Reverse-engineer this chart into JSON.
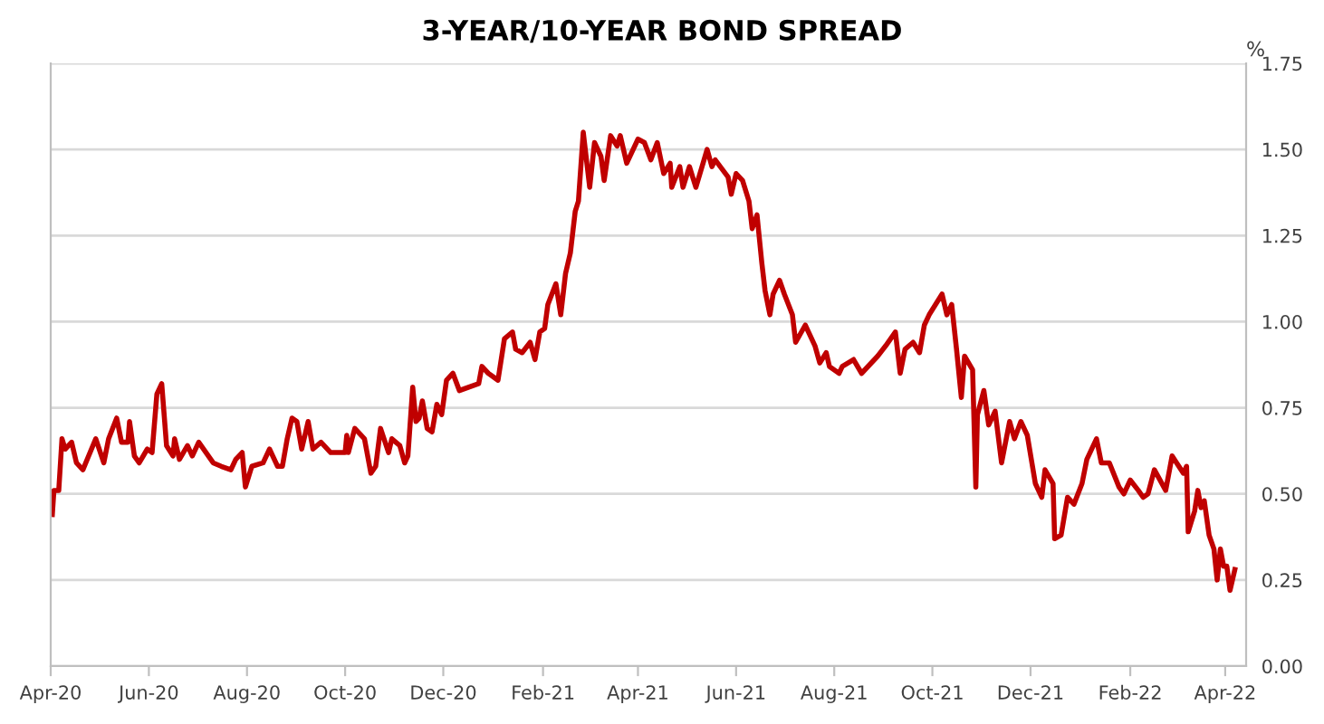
{
  "chart_data": {
    "type": "line",
    "title": "3-YEAR/10-YEAR BOND SPREAD",
    "ylabel": "%",
    "xlim": [
      "2020-04-01",
      "2022-04-14"
    ],
    "xticks": [
      {
        "value": "2020-04-01",
        "label": "Apr-20"
      },
      {
        "value": "2020-06-01",
        "label": "Jun-20"
      },
      {
        "value": "2020-08-01",
        "label": "Aug-20"
      },
      {
        "value": "2020-10-01",
        "label": "Oct-20"
      },
      {
        "value": "2020-12-01",
        "label": "Dec-20"
      },
      {
        "value": "2021-02-01",
        "label": "Feb-21"
      },
      {
        "value": "2021-04-01",
        "label": "Apr-21"
      },
      {
        "value": "2021-06-01",
        "label": "Jun-21"
      },
      {
        "value": "2021-08-01",
        "label": "Aug-21"
      },
      {
        "value": "2021-10-01",
        "label": "Oct-21"
      },
      {
        "value": "2021-12-01",
        "label": "Dec-21"
      },
      {
        "value": "2022-02-01",
        "label": "Feb-22"
      },
      {
        "value": "2022-04-01",
        "label": "Apr-22"
      }
    ],
    "ylim": [
      0,
      1.75
    ],
    "yticks": [
      {
        "value": 0,
        "label": "0.00"
      },
      {
        "value": 0.25,
        "label": "0.25"
      },
      {
        "value": 0.5,
        "label": "0.50"
      },
      {
        "value": 0.75,
        "label": "0.75"
      },
      {
        "value": 1.0,
        "label": "1.00"
      },
      {
        "value": 1.25,
        "label": "1.25"
      },
      {
        "value": 1.5,
        "label": "1.50"
      },
      {
        "value": 1.75,
        "label": "1.75"
      }
    ],
    "grid": "y",
    "marker": "none",
    "line_style": "solid",
    "series": [
      {
        "color": "#c00000",
        "x": [
          "2020-04-02",
          "2020-04-03",
          "2020-04-06",
          "2020-04-08",
          "2020-04-10",
          "2020-04-14",
          "2020-04-17",
          "2020-04-21",
          "2020-04-29",
          "2020-05-04",
          "2020-05-07",
          "2020-05-12",
          "2020-05-15",
          "2020-05-19",
          "2020-05-20",
          "2020-05-23",
          "2020-05-26",
          "2020-05-31",
          "2020-06-03",
          "2020-06-06",
          "2020-06-09",
          "2020-06-12",
          "2020-06-16",
          "2020-06-17",
          "2020-06-20",
          "2020-06-25",
          "2020-06-28",
          "2020-07-02",
          "2020-07-11",
          "2020-07-16",
          "2020-07-22",
          "2020-07-25",
          "2020-07-29",
          "2020-07-31",
          "2020-08-04",
          "2020-08-11",
          "2020-08-15",
          "2020-08-20",
          "2020-08-23",
          "2020-08-26",
          "2020-08-29",
          "2020-09-01",
          "2020-09-04",
          "2020-09-08",
          "2020-09-11",
          "2020-09-16",
          "2020-09-22",
          "2020-10-01",
          "2020-10-02",
          "2020-10-03",
          "2020-10-07",
          "2020-10-13",
          "2020-10-17",
          "2020-10-20",
          "2020-10-23",
          "2020-10-28",
          "2020-10-30",
          "2020-11-04",
          "2020-11-07",
          "2020-11-09",
          "2020-11-12",
          "2020-11-14",
          "2020-11-16",
          "2020-11-18",
          "2020-11-21",
          "2020-11-24",
          "2020-11-27",
          "2020-11-30",
          "2020-12-03",
          "2020-12-07",
          "2020-12-11",
          "2020-12-23",
          "2020-12-25",
          "2020-12-29",
          "2021-01-04",
          "2021-01-08",
          "2021-01-13",
          "2021-01-15",
          "2021-01-19",
          "2021-01-24",
          "2021-01-27",
          "2021-01-30",
          "2021-02-02",
          "2021-02-04",
          "2021-02-09",
          "2021-02-12",
          "2021-02-15",
          "2021-02-18",
          "2021-02-21",
          "2021-02-23",
          "2021-02-26",
          "2021-03-02",
          "2021-03-05",
          "2021-03-09",
          "2021-03-11",
          "2021-03-15",
          "2021-03-19",
          "2021-03-21",
          "2021-03-25",
          "2021-04-01",
          "2021-04-05",
          "2021-04-09",
          "2021-04-13",
          "2021-04-17",
          "2021-04-21",
          "2021-04-22",
          "2021-04-27",
          "2021-04-29",
          "2021-05-03",
          "2021-05-07",
          "2021-05-14",
          "2021-05-17",
          "2021-05-19",
          "2021-05-27",
          "2021-05-29",
          "2021-06-01",
          "2021-06-05",
          "2021-06-09",
          "2021-06-11",
          "2021-06-14",
          "2021-06-17",
          "2021-06-19",
          "2021-06-22",
          "2021-06-24",
          "2021-06-28",
          "2021-07-01",
          "2021-07-06",
          "2021-07-08",
          "2021-07-14",
          "2021-07-20",
          "2021-07-23",
          "2021-07-27",
          "2021-07-29",
          "2021-08-04",
          "2021-08-06",
          "2021-08-13",
          "2021-08-18",
          "2021-08-28",
          "2021-09-02",
          "2021-09-08",
          "2021-09-11",
          "2021-09-14",
          "2021-09-19",
          "2021-09-23",
          "2021-09-26",
          "2021-09-29",
          "2021-10-07",
          "2021-10-10",
          "2021-10-13",
          "2021-10-16",
          "2021-10-19",
          "2021-10-21",
          "2021-10-26",
          "2021-10-28",
          "2021-10-29",
          "2021-11-02",
          "2021-11-05",
          "2021-11-09",
          "2021-11-13",
          "2021-11-18",
          "2021-11-21",
          "2021-11-25",
          "2021-11-29",
          "2021-12-04",
          "2021-12-08",
          "2021-12-10",
          "2021-12-15",
          "2021-12-16",
          "2021-12-20",
          "2021-12-24",
          "2021-12-28",
          "2022-01-02",
          "2022-01-05",
          "2022-01-11",
          "2022-01-14",
          "2022-01-19",
          "2022-01-25",
          "2022-01-28",
          "2022-02-01",
          "2022-02-06",
          "2022-02-09",
          "2022-02-12",
          "2022-02-16",
          "2022-02-23",
          "2022-02-27",
          "2022-03-06",
          "2022-03-08",
          "2022-03-09",
          "2022-03-13",
          "2022-03-15",
          "2022-03-17",
          "2022-03-19",
          "2022-03-22",
          "2022-03-25",
          "2022-03-27",
          "2022-03-29",
          "2022-03-31",
          "2022-04-02",
          "2022-04-04",
          "2022-04-07"
        ],
        "values": [
          0.44,
          0.51,
          0.51,
          0.66,
          0.63,
          0.65,
          0.59,
          0.57,
          0.66,
          0.59,
          0.66,
          0.72,
          0.65,
          0.65,
          0.71,
          0.61,
          0.59,
          0.63,
          0.62,
          0.79,
          0.82,
          0.64,
          0.61,
          0.66,
          0.6,
          0.64,
          0.61,
          0.65,
          0.59,
          0.58,
          0.57,
          0.6,
          0.62,
          0.52,
          0.58,
          0.59,
          0.63,
          0.58,
          0.58,
          0.66,
          0.72,
          0.71,
          0.63,
          0.71,
          0.63,
          0.65,
          0.62,
          0.62,
          0.67,
          0.62,
          0.69,
          0.66,
          0.56,
          0.58,
          0.69,
          0.62,
          0.66,
          0.64,
          0.59,
          0.61,
          0.81,
          0.71,
          0.72,
          0.77,
          0.69,
          0.68,
          0.76,
          0.73,
          0.83,
          0.85,
          0.8,
          0.82,
          0.87,
          0.85,
          0.83,
          0.95,
          0.97,
          0.92,
          0.91,
          0.94,
          0.89,
          0.97,
          0.98,
          1.05,
          1.11,
          1.02,
          1.14,
          1.2,
          1.32,
          1.35,
          1.55,
          1.39,
          1.52,
          1.48,
          1.41,
          1.54,
          1.51,
          1.54,
          1.46,
          1.53,
          1.52,
          1.47,
          1.52,
          1.43,
          1.46,
          1.39,
          1.45,
          1.39,
          1.45,
          1.39,
          1.5,
          1.45,
          1.47,
          1.42,
          1.37,
          1.43,
          1.41,
          1.35,
          1.27,
          1.31,
          1.17,
          1.09,
          1.02,
          1.08,
          1.12,
          1.08,
          1.02,
          0.94,
          0.99,
          0.93,
          0.88,
          0.91,
          0.87,
          0.85,
          0.87,
          0.89,
          0.85,
          0.9,
          0.93,
          0.97,
          0.85,
          0.92,
          0.94,
          0.91,
          0.99,
          1.02,
          1.08,
          1.02,
          1.05,
          0.92,
          0.78,
          0.9,
          0.86,
          0.52,
          0.73,
          0.8,
          0.7,
          0.74,
          0.59,
          0.71,
          0.66,
          0.71,
          0.67,
          0.53,
          0.49,
          0.57,
          0.53,
          0.37,
          0.38,
          0.49,
          0.47,
          0.53,
          0.6,
          0.66,
          0.59,
          0.59,
          0.52,
          0.5,
          0.54,
          0.51,
          0.49,
          0.5,
          0.57,
          0.51,
          0.61,
          0.56,
          0.58,
          0.39,
          0.45,
          0.51,
          0.46,
          0.48,
          0.38,
          0.34,
          0.25,
          0.34,
          0.29,
          0.29,
          0.22,
          0.28
        ]
      }
    ]
  }
}
